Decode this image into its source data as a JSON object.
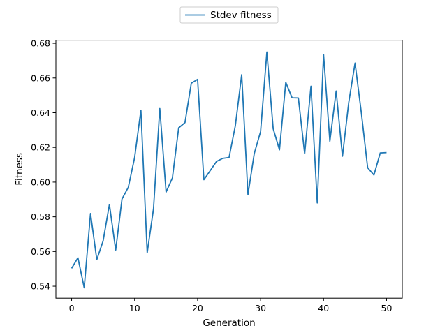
{
  "chart_data": {
    "type": "line",
    "title": "",
    "xlabel": "Generation",
    "ylabel": "Fitness",
    "xlim": [
      -2.5,
      52.5
    ],
    "ylim": [
      0.5331,
      0.6818
    ],
    "xticks": [
      0,
      10,
      20,
      30,
      40,
      50
    ],
    "yticks": [
      0.54,
      0.56,
      0.58,
      0.6,
      0.62,
      0.64,
      0.66,
      0.68
    ],
    "ytick_labels": [
      "0.54",
      "0.56",
      "0.58",
      "0.60",
      "0.62",
      "0.64",
      "0.66",
      "0.68"
    ],
    "xtick_labels": [
      "0",
      "10",
      "20",
      "30",
      "40",
      "50"
    ],
    "grid": false,
    "legend_position": "top-center-outside",
    "series": [
      {
        "name": "Stdev fitness",
        "color": "#1f77b4",
        "x": [
          0,
          1,
          2,
          3,
          4,
          5,
          6,
          7,
          8,
          9,
          10,
          11,
          12,
          13,
          14,
          15,
          16,
          17,
          18,
          19,
          20,
          21,
          22,
          23,
          24,
          25,
          26,
          27,
          28,
          29,
          30,
          31,
          32,
          33,
          34,
          35,
          36,
          37,
          38,
          39,
          40,
          41,
          42,
          43,
          44,
          45,
          46,
          47,
          48,
          49,
          50
        ],
        "y": [
          0.5503,
          0.5564,
          0.5391,
          0.5819,
          0.5553,
          0.5661,
          0.5871,
          0.5609,
          0.5903,
          0.597,
          0.6141,
          0.6414,
          0.5593,
          0.5846,
          0.6424,
          0.5943,
          0.6024,
          0.6313,
          0.6343,
          0.657,
          0.6592,
          0.6014,
          0.6066,
          0.6119,
          0.6137,
          0.6142,
          0.6327,
          0.6619,
          0.5929,
          0.6165,
          0.6291,
          0.675,
          0.6308,
          0.6186,
          0.6575,
          0.6486,
          0.6485,
          0.6164,
          0.6553,
          0.588,
          0.6735,
          0.6236,
          0.6525,
          0.6149,
          0.646,
          0.6686,
          0.6399,
          0.6083,
          0.6041,
          0.6168,
          0.617
        ]
      }
    ]
  }
}
